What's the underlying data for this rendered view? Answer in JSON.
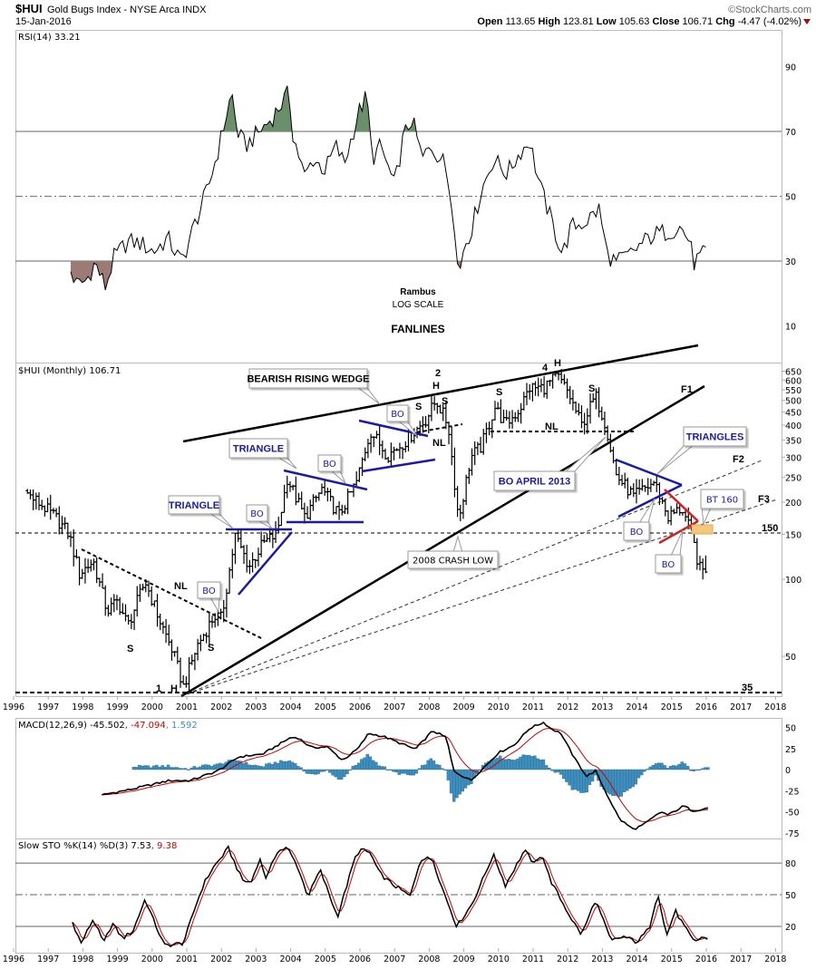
{
  "header": {
    "symbol": "$HUI",
    "name": "Gold Bugs Index - NYSE Arca INDX",
    "date": "15-Jan-2016",
    "copyright": "©StockCharts.com",
    "open_label": "Open",
    "open": "113.65",
    "high_label": "High",
    "high": "123.81",
    "low_label": "Low",
    "low": "105.63",
    "close_label": "Close",
    "close": "106.71",
    "chg_label": "Chg",
    "chg": "-4.47 (-4.02%)"
  },
  "colors": {
    "rsi_overbought_fill": "#6b8f6b",
    "rsi_oversold_fill": "#9c7a75",
    "macd_signal": "#d00000",
    "macd_hist": "#3d8fc0",
    "pattern_blue": "#1a1aa8",
    "pattern_red": "#d42020",
    "bt_highlight": "#f5c77e"
  },
  "annotations": {
    "rambus": "Rambus",
    "log_scale": "LOG SCALE",
    "fanlines": "FANLINES",
    "bearish_rising_wedge": "BEARISH RISING WEDGE",
    "triangle": "TRIANGLE",
    "triangles": "TRIANGLES",
    "bo": "BO",
    "bo_april_2013": "BO APRIL 2013",
    "crash_low": "2008 CRASH LOW",
    "bt_160": "BT 160",
    "nl": "NL",
    "s": "S",
    "h": "H",
    "n1": "1",
    "n2": "2",
    "n3": "3",
    "n4": "4",
    "f1": "F1",
    "f2": "F2",
    "f3": "F3",
    "level_150": "150",
    "level_35": "35"
  },
  "x_axis": {
    "years": [
      "1996",
      "1997",
      "1998",
      "1999",
      "2000",
      "2001",
      "2002",
      "2003",
      "2004",
      "2005",
      "2006",
      "2007",
      "2008",
      "2009",
      "2010",
      "2011",
      "2012",
      "2013",
      "2014",
      "2015",
      "2016",
      "2017",
      "2018"
    ]
  },
  "chart_data": [
    {
      "id": "rsi",
      "type": "line",
      "title": "RSI(14) 33.21",
      "yticks": [
        "90",
        "70",
        "50",
        "30",
        "10"
      ],
      "ylim": [
        0,
        100
      ],
      "levels": [
        70,
        30
      ],
      "midline": 50,
      "points": [
        [
          1997.65,
          26.7
        ],
        [
          1997.83,
          22.5
        ],
        [
          1998.1,
          24
        ],
        [
          1998.35,
          29.5
        ],
        [
          1998.65,
          22
        ],
        [
          1998.9,
          31
        ],
        [
          1999.3,
          36
        ],
        [
          1999.65,
          35.5
        ],
        [
          2000.05,
          33
        ],
        [
          2000.45,
          37
        ],
        [
          2000.85,
          29.5
        ],
        [
          2001.25,
          42
        ],
        [
          2001.6,
          52
        ],
        [
          2001.9,
          64
        ],
        [
          2002.3,
          82
        ],
        [
          2002.45,
          70
        ],
        [
          2002.7,
          65.5
        ],
        [
          2003.1,
          70
        ],
        [
          2003.45,
          74
        ],
        [
          2003.95,
          82
        ],
        [
          2004.05,
          70
        ],
        [
          2004.4,
          56
        ],
        [
          2004.65,
          61.5
        ],
        [
          2005.0,
          58
        ],
        [
          2005.3,
          65.5
        ],
        [
          2005.55,
          60
        ],
        [
          2005.95,
          75.5
        ],
        [
          2006.2,
          81
        ],
        [
          2006.35,
          61.5
        ],
        [
          2006.6,
          65.5
        ],
        [
          2007.0,
          53
        ],
        [
          2007.25,
          68
        ],
        [
          2007.5,
          74
        ],
        [
          2007.8,
          61.5
        ],
        [
          2008.05,
          65.5
        ],
        [
          2008.45,
          60
        ],
        [
          2008.7,
          46
        ],
        [
          2008.85,
          24
        ],
        [
          2009.0,
          35
        ],
        [
          2009.2,
          39
        ],
        [
          2009.5,
          51.5
        ],
        [
          2009.85,
          61.5
        ],
        [
          2010.25,
          57
        ],
        [
          2010.65,
          64
        ],
        [
          2010.9,
          67
        ],
        [
          2011.2,
          53
        ],
        [
          2011.45,
          45
        ],
        [
          2011.85,
          32
        ],
        [
          2012.1,
          40.5
        ],
        [
          2012.5,
          42
        ],
        [
          2012.9,
          46
        ],
        [
          2013.15,
          32
        ],
        [
          2013.4,
          29.5
        ],
        [
          2013.8,
          32
        ],
        [
          2014.1,
          35
        ],
        [
          2014.45,
          38
        ],
        [
          2014.85,
          39
        ],
        [
          2015.25,
          40.5
        ],
        [
          2015.5,
          36.5
        ],
        [
          2015.65,
          29.5
        ],
        [
          2016.05,
          33.2
        ]
      ]
    },
    {
      "id": "price",
      "type": "ohlc",
      "scale": "log",
      "title": "$HUI (Monthly) 106.71",
      "yticks": [
        "650",
        "600",
        "550",
        "500",
        "450",
        "400",
        "350",
        "300",
        "250",
        "200",
        "150",
        "100",
        "50"
      ],
      "ylim": [
        35,
        650
      ],
      "closes": [
        [
          1996.4,
          215
        ],
        [
          1996.8,
          195
        ],
        [
          1997.2,
          175
        ],
        [
          1997.6,
          150
        ],
        [
          1997.9,
          105
        ],
        [
          1998.3,
          118
        ],
        [
          1998.7,
          75
        ],
        [
          1999.0,
          82
        ],
        [
          1999.3,
          66
        ],
        [
          1999.8,
          98
        ],
        [
          2000.2,
          70
        ],
        [
          2000.6,
          52
        ],
        [
          2000.9,
          38
        ],
        [
          2001.3,
          55
        ],
        [
          2001.8,
          72
        ],
        [
          2002.0,
          70
        ],
        [
          2002.4,
          148
        ],
        [
          2002.8,
          112
        ],
        [
          2003.2,
          138
        ],
        [
          2003.6,
          150
        ],
        [
          2003.9,
          248
        ],
        [
          2004.4,
          175
        ],
        [
          2004.9,
          225
        ],
        [
          2005.4,
          178
        ],
        [
          2005.9,
          240
        ],
        [
          2006.3,
          380
        ],
        [
          2006.8,
          305
        ],
        [
          2007.3,
          345
        ],
        [
          2007.9,
          420
        ],
        [
          2008.2,
          500
        ],
        [
          2008.55,
          400
        ],
        [
          2008.85,
          170
        ],
        [
          2009.2,
          300
        ],
        [
          2009.5,
          330
        ],
        [
          2009.9,
          470
        ],
        [
          2010.2,
          400
        ],
        [
          2010.6,
          460
        ],
        [
          2010.9,
          560
        ],
        [
          2011.3,
          560
        ],
        [
          2011.7,
          620
        ],
        [
          2012.0,
          540
        ],
        [
          2012.4,
          400
        ],
        [
          2012.8,
          520
        ],
        [
          2013.1,
          400
        ],
        [
          2013.4,
          255
        ],
        [
          2013.9,
          210
        ],
        [
          2014.5,
          240
        ],
        [
          2014.9,
          175
        ],
        [
          2015.3,
          190
        ],
        [
          2015.6,
          145
        ],
        [
          2015.8,
          110
        ],
        [
          2016.05,
          106.71
        ]
      ]
    },
    {
      "id": "macd",
      "type": "line+histogram",
      "title_main": "MACD(12,26,9) -45.502",
      "title_signal": ", -47.094",
      "title_hist": ", 1.592",
      "yticks": [
        "50",
        "25",
        "0",
        "-25",
        "-50",
        "-75"
      ],
      "ylim": [
        -80,
        60
      ],
      "points": [
        [
          1998.55,
          -30
        ],
        [
          1999.45,
          -23
        ],
        [
          2000.5,
          -13
        ],
        [
          2001.1,
          -13
        ],
        [
          2001.9,
          -1.5
        ],
        [
          2002.5,
          15
        ],
        [
          2003.2,
          18.5
        ],
        [
          2004.0,
          38
        ],
        [
          2004.2,
          38
        ],
        [
          2004.6,
          26
        ],
        [
          2005.05,
          27
        ],
        [
          2005.5,
          11
        ],
        [
          2005.95,
          25
        ],
        [
          2006.25,
          43
        ],
        [
          2006.7,
          39
        ],
        [
          2007.6,
          24
        ],
        [
          2008.1,
          46
        ],
        [
          2008.5,
          38
        ],
        [
          2008.7,
          -1.5
        ],
        [
          2009.2,
          -13
        ],
        [
          2009.7,
          7.5
        ],
        [
          2010.0,
          20
        ],
        [
          2010.45,
          29
        ],
        [
          2010.9,
          49
        ],
        [
          2011.3,
          56
        ],
        [
          2011.5,
          49
        ],
        [
          2011.8,
          43
        ],
        [
          2012.2,
          13
        ],
        [
          2012.55,
          -8
        ],
        [
          2012.8,
          -1.5
        ],
        [
          2013.1,
          -27
        ],
        [
          2013.5,
          -59
        ],
        [
          2013.9,
          -71
        ],
        [
          2014.2,
          -65
        ],
        [
          2014.7,
          -50
        ],
        [
          2014.9,
          -54
        ],
        [
          2015.35,
          -43
        ],
        [
          2015.6,
          -49
        ],
        [
          2016.05,
          -45.5
        ]
      ]
    },
    {
      "id": "sto",
      "type": "line",
      "title_main": "Slow STO %K(14) %D(3) 7.53",
      "title_d": ", 9.38",
      "yticks": [
        "80",
        "50",
        "20"
      ],
      "ylim": [
        -5,
        100
      ],
      "points": [
        [
          1997.7,
          24
        ],
        [
          1997.95,
          4
        ],
        [
          1998.3,
          27
        ],
        [
          1998.6,
          4
        ],
        [
          1998.85,
          23
        ],
        [
          1999.15,
          8.5
        ],
        [
          1999.45,
          16
        ],
        [
          1999.8,
          46
        ],
        [
          2000.05,
          25
        ],
        [
          2000.35,
          2
        ],
        [
          2000.9,
          4
        ],
        [
          2001.3,
          43.5
        ],
        [
          2001.5,
          61
        ],
        [
          2001.75,
          75
        ],
        [
          2002.2,
          94
        ],
        [
          2002.6,
          64
        ],
        [
          2002.85,
          61
        ],
        [
          2003.1,
          84.5
        ],
        [
          2003.3,
          65
        ],
        [
          2003.6,
          91
        ],
        [
          2003.9,
          94.5
        ],
        [
          2004.2,
          76.5
        ],
        [
          2004.5,
          48.5
        ],
        [
          2004.85,
          73.5
        ],
        [
          2005.35,
          29
        ],
        [
          2005.85,
          84
        ],
        [
          2006.0,
          93
        ],
        [
          2006.3,
          89.5
        ],
        [
          2006.55,
          71
        ],
        [
          2006.85,
          62
        ],
        [
          2007.45,
          48.5
        ],
        [
          2007.75,
          84
        ],
        [
          2008.1,
          84
        ],
        [
          2008.35,
          58.5
        ],
        [
          2008.8,
          20
        ],
        [
          2009.25,
          42
        ],
        [
          2009.85,
          88
        ],
        [
          2010.2,
          59
        ],
        [
          2010.75,
          92
        ],
        [
          2011.05,
          78.5
        ],
        [
          2011.25,
          89.5
        ],
        [
          2011.5,
          63.5
        ],
        [
          2012.1,
          27.5
        ],
        [
          2012.4,
          12
        ],
        [
          2012.8,
          45
        ],
        [
          2013.25,
          6
        ],
        [
          2013.6,
          10.5
        ],
        [
          2014.0,
          5
        ],
        [
          2014.35,
          18
        ],
        [
          2014.6,
          52.5
        ],
        [
          2014.85,
          10.5
        ],
        [
          2015.1,
          35
        ],
        [
          2015.4,
          18
        ],
        [
          2015.65,
          5
        ],
        [
          2015.9,
          10.5
        ],
        [
          2016.05,
          7.5
        ]
      ]
    }
  ]
}
